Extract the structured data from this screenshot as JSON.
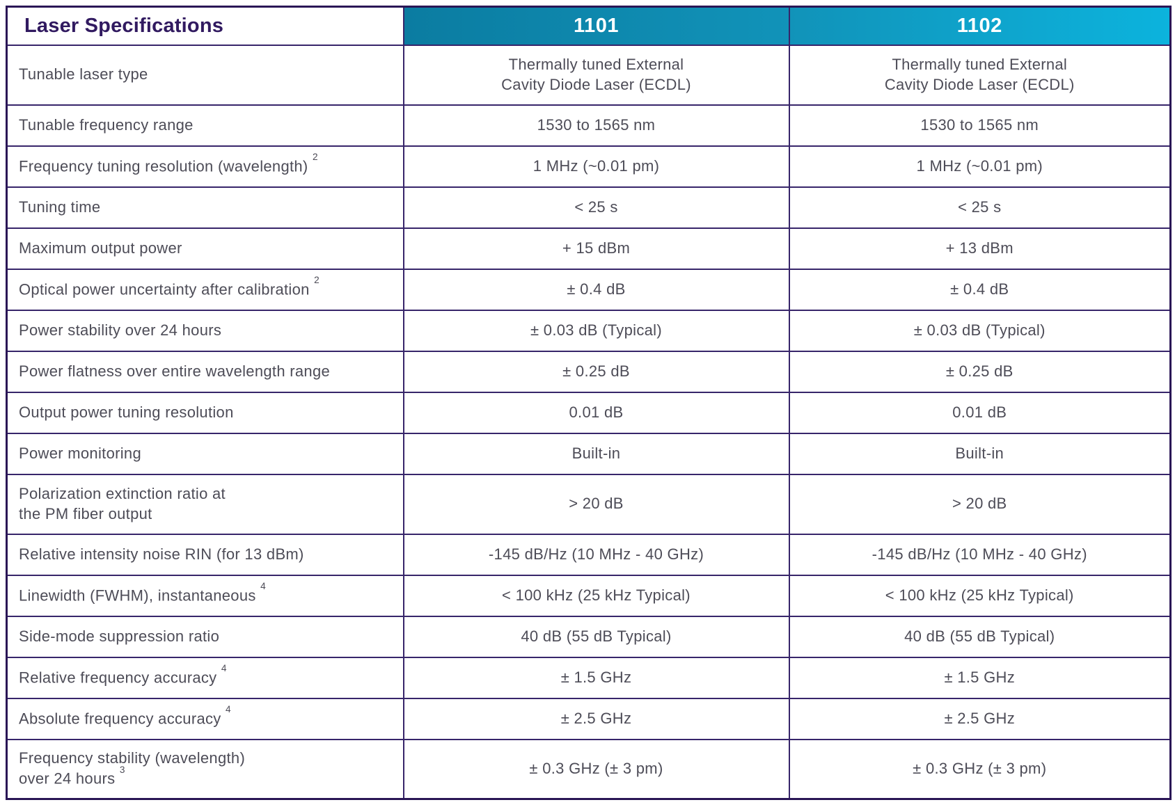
{
  "table": {
    "title": "Laser Specifications",
    "columns": [
      "1101",
      "1102"
    ],
    "rows": [
      {
        "label": "Tunable laser type",
        "sup": "",
        "tall": true,
        "values": [
          "Thermally tuned External\nCavity Diode Laser (ECDL)",
          "Thermally tuned External\nCavity Diode Laser (ECDL)"
        ]
      },
      {
        "label": "Tunable frequency range",
        "sup": "",
        "values": [
          "1530 to 1565 nm",
          "1530 to 1565 nm"
        ]
      },
      {
        "label": "Frequency tuning resolution (wavelength)",
        "sup": "2",
        "values": [
          "1 MHz (~0.01 pm)",
          "1 MHz (~0.01 pm)"
        ]
      },
      {
        "label": "Tuning time",
        "sup": "",
        "values": [
          "< 25 s",
          "< 25 s"
        ]
      },
      {
        "label": "Maximum output power",
        "sup": "",
        "values": [
          "+ 15 dBm",
          "+ 13 dBm"
        ]
      },
      {
        "label": "Optical power uncertainty after calibration",
        "sup": "2",
        "values": [
          "± 0.4 dB",
          "± 0.4 dB"
        ]
      },
      {
        "label": "Power stability over 24 hours",
        "sup": "",
        "values": [
          "± 0.03 dB (Typical)",
          "± 0.03 dB (Typical)"
        ]
      },
      {
        "label": "Power flatness over entire wavelength range",
        "sup": "",
        "values": [
          "± 0.25 dB",
          "± 0.25 dB"
        ]
      },
      {
        "label": "Output power tuning resolution",
        "sup": "",
        "values": [
          "0.01 dB",
          "0.01 dB"
        ]
      },
      {
        "label": "Power monitoring",
        "sup": "",
        "values": [
          "Built-in",
          "Built-in"
        ]
      },
      {
        "label": "Polarization extinction ratio at\nthe PM fiber output",
        "sup": "",
        "tall": true,
        "values": [
          "> 20 dB",
          "> 20 dB"
        ]
      },
      {
        "label": "Relative intensity noise RIN (for 13 dBm)",
        "sup": "",
        "values": [
          "-145 dB/Hz (10 MHz - 40 GHz)",
          "-145 dB/Hz (10 MHz - 40 GHz)"
        ]
      },
      {
        "label": "Linewidth (FWHM), instantaneous",
        "sup": "4",
        "values": [
          "< 100 kHz (25 kHz Typical)",
          "< 100 kHz (25 kHz Typical)"
        ]
      },
      {
        "label": "Side-mode suppression ratio",
        "sup": "",
        "values": [
          "40 dB (55 dB Typical)",
          "40 dB (55 dB Typical)"
        ]
      },
      {
        "label": "Relative frequency accuracy",
        "sup": "4",
        "values": [
          "± 1.5 GHz",
          "± 1.5 GHz"
        ]
      },
      {
        "label": "Absolute frequency accuracy",
        "sup": "4",
        "values": [
          "± 2.5 GHz",
          "± 2.5 GHz"
        ]
      },
      {
        "label": "Frequency stability (wavelength)\nover 24 hours",
        "sup": "3",
        "tall": true,
        "values": [
          "± 0.3 GHz (± 3 pm)",
          "± 0.3 GHz (± 3 pm)"
        ]
      }
    ],
    "colors": {
      "border": "#37256a",
      "border_outer": "#2a1656",
      "title_text": "#311a60",
      "body_text": "#4d4c57",
      "header_gradient_start": "#0b7ca1",
      "header_gradient_mid": "#1193b9",
      "header_gradient_end": "#0cb3dd",
      "header_text": "#ffffff"
    }
  }
}
